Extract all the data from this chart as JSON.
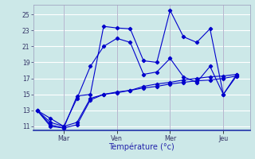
{
  "title": "Température (°c)",
  "bg_color": "#cce8e8",
  "grid_color": "#ffffff",
  "line_color": "#0000cc",
  "x_ticks_labels": [
    "Mar",
    "Ven",
    "Mer",
    "Jeu"
  ],
  "x_ticks_pos": [
    2,
    6,
    10,
    14
  ],
  "xlim": [
    -0.3,
    16.0
  ],
  "ylim": [
    10.5,
    26.2
  ],
  "yticks": [
    11,
    13,
    15,
    17,
    19,
    21,
    23,
    25
  ],
  "lines": {
    "x1": [
      0,
      1,
      2,
      3,
      4,
      5,
      6,
      7,
      8,
      9,
      10,
      11,
      12,
      13,
      14,
      15
    ],
    "y1": [
      13.0,
      11.5,
      11.0,
      11.5,
      14.5,
      15.0,
      15.2,
      15.5,
      15.8,
      16.0,
      16.3,
      16.5,
      16.7,
      16.8,
      17.0,
      17.3
    ],
    "x2": [
      0,
      1,
      2,
      3,
      4,
      5,
      6,
      7,
      8,
      9,
      10,
      11,
      12,
      13,
      14,
      15
    ],
    "y2": [
      13.0,
      11.2,
      10.8,
      11.2,
      14.3,
      15.0,
      15.3,
      15.5,
      16.0,
      16.3,
      16.5,
      16.8,
      17.0,
      17.2,
      17.3,
      17.5
    ],
    "x3": [
      0,
      1,
      2,
      3,
      4,
      5,
      6,
      7,
      8,
      9,
      10,
      11,
      12,
      13,
      14,
      15
    ],
    "y3": [
      13.0,
      12.0,
      11.0,
      14.5,
      18.5,
      21.0,
      22.0,
      21.5,
      17.5,
      17.8,
      19.5,
      17.2,
      16.5,
      18.5,
      15.0,
      17.5
    ],
    "x4": [
      0,
      1,
      2,
      3,
      4,
      5,
      6,
      7,
      8,
      9,
      10,
      11,
      12,
      13,
      14,
      15
    ],
    "y4": [
      13.0,
      11.0,
      10.8,
      14.8,
      15.0,
      23.5,
      23.3,
      23.2,
      19.2,
      19.0,
      25.5,
      22.2,
      21.5,
      23.2,
      15.0,
      17.3
    ]
  }
}
